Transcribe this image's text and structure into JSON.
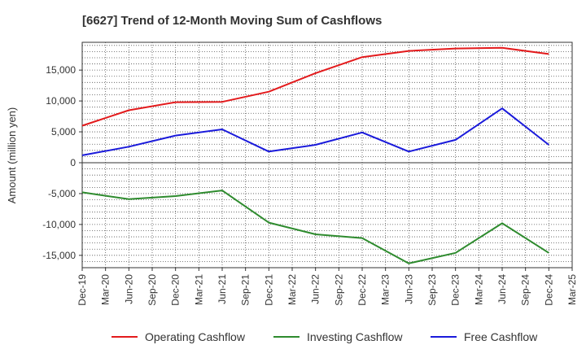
{
  "chart_data": {
    "type": "line",
    "title": "[6627]  Trend of 12-Month Moving Sum of Cashflows",
    "xlabel": "",
    "ylabel": "Amount (million yen)",
    "categories": [
      "Dec-19",
      "Mar-20",
      "Jun-20",
      "Sep-20",
      "Dec-20",
      "Mar-21",
      "Jun-21",
      "Sep-21",
      "Dec-21",
      "Mar-22",
      "Jun-22",
      "Sep-22",
      "Dec-22",
      "Mar-23",
      "Jun-23",
      "Sep-23",
      "Dec-23",
      "Mar-24",
      "Jun-24",
      "Sep-24",
      "Dec-24",
      "Mar-25"
    ],
    "ylim": [
      -17000,
      19500
    ],
    "yticks": [
      15000,
      10000,
      5000,
      0,
      -5000,
      -10000,
      -15000
    ],
    "ytick_labels": [
      "15,000",
      "10,000",
      "5,000",
      "0",
      "-5,000",
      "-10,000",
      "-15,000"
    ],
    "grid": true,
    "legend_position": "bottom",
    "series": [
      {
        "name": "Operating Cashflow",
        "color": "#e31a1c",
        "values": [
          6000,
          null,
          8500,
          null,
          9800,
          null,
          9850,
          null,
          11500,
          null,
          14500,
          null,
          17100,
          null,
          18100,
          null,
          18500,
          null,
          18600,
          null,
          17600,
          null
        ]
      },
      {
        "name": "Investing Cashflow",
        "color": "#2e8b2e",
        "values": [
          -4800,
          null,
          -5900,
          null,
          -5400,
          null,
          -4500,
          null,
          -9700,
          null,
          -11600,
          null,
          -12200,
          null,
          -16300,
          null,
          -14600,
          null,
          -9800,
          null,
          -14600,
          null
        ]
      },
      {
        "name": "Free Cashflow",
        "color": "#1a1adb",
        "values": [
          1200,
          null,
          2600,
          null,
          4400,
          null,
          5400,
          null,
          1800,
          null,
          2900,
          null,
          4900,
          null,
          1800,
          null,
          3700,
          null,
          8800,
          null,
          2900,
          null
        ]
      }
    ]
  }
}
